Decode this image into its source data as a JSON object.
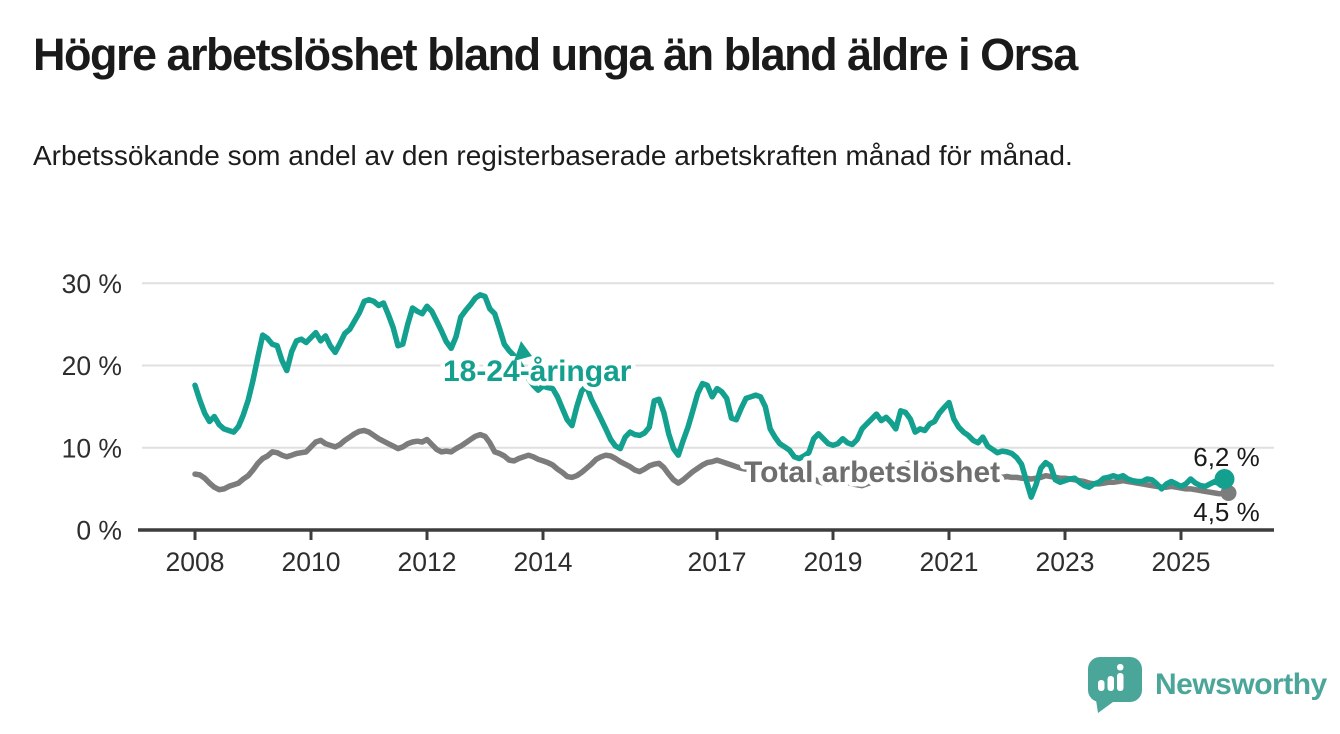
{
  "chart_data": {
    "type": "line",
    "title": "Högre arbetslöshet bland unga än bland äldre i Orsa",
    "subtitle": "Arbetssökande som andel av den registerbaserade arbetskraften månad för månad.",
    "xlabel": "",
    "ylabel": "",
    "unit": "%",
    "grid": "horizontal",
    "ylim": [
      0,
      32
    ],
    "x_domain": {
      "start": "2008-01",
      "end": "2025-10",
      "frequency": "monthly"
    },
    "y_ticks": [
      {
        "value": 0,
        "label": "0 %"
      },
      {
        "value": 10,
        "label": "10 %"
      },
      {
        "value": 20,
        "label": "20 %"
      },
      {
        "value": 30,
        "label": "30 %"
      }
    ],
    "x_ticks": [
      {
        "year": 2008,
        "label": "2008"
      },
      {
        "year": 2010,
        "label": "2010"
      },
      {
        "year": 2012,
        "label": "2012"
      },
      {
        "year": 2014,
        "label": "2014"
      },
      {
        "year": 2017,
        "label": "2017"
      },
      {
        "year": 2019,
        "label": "2019"
      },
      {
        "year": 2021,
        "label": "2021"
      },
      {
        "year": 2023,
        "label": "2023"
      },
      {
        "year": 2025,
        "label": "2025"
      }
    ],
    "series": [
      {
        "name": "18-24-åringar",
        "color": "#13A08F",
        "label_color": "#13A08F",
        "end_label": "6,2 %",
        "last_value": 6.2,
        "values": [
          17.6,
          15.8,
          14.2,
          13.2,
          13.8,
          12.8,
          12.3,
          12.1,
          11.9,
          12.6,
          14.0,
          15.8,
          18.2,
          21.0,
          23.7,
          23.3,
          22.6,
          22.4,
          20.6,
          19.4,
          21.7,
          23.0,
          23.2,
          22.8,
          23.4,
          24.0,
          23.0,
          23.6,
          22.4,
          21.6,
          22.7,
          23.9,
          24.4,
          25.4,
          26.4,
          27.8,
          28.0,
          27.8,
          27.3,
          27.6,
          26.2,
          24.6,
          22.4,
          22.6,
          25.0,
          27.0,
          26.6,
          26.3,
          27.2,
          26.6,
          25.4,
          24.2,
          22.9,
          22.1,
          23.5,
          25.9,
          26.7,
          27.4,
          28.2,
          28.6,
          28.4,
          26.9,
          26.3,
          24.5,
          22.6,
          21.8,
          21.2,
          20.4,
          19.4,
          18.4,
          17.6,
          17.0,
          17.5,
          17.3,
          17.2,
          16.2,
          14.8,
          13.4,
          12.7,
          15.0,
          16.9,
          17.5,
          15.9,
          14.7,
          13.5,
          12.3,
          11.0,
          10.2,
          9.9,
          11.3,
          11.9,
          11.6,
          11.5,
          11.8,
          12.5,
          15.7,
          15.9,
          14.3,
          11.7,
          9.9,
          9.1,
          10.9,
          12.5,
          14.5,
          16.6,
          17.8,
          17.6,
          16.2,
          17.2,
          16.8,
          16.0,
          13.6,
          13.4,
          14.8,
          16.0,
          16.2,
          16.4,
          16.2,
          15.0,
          12.3,
          11.3,
          10.5,
          10.1,
          9.7,
          8.9,
          8.7,
          9.0,
          9.4,
          11.1,
          11.7,
          11.1,
          10.5,
          10.3,
          10.5,
          11.1,
          10.6,
          10.4,
          11.0,
          12.3,
          12.9,
          13.5,
          14.1,
          13.3,
          13.7,
          13.1,
          12.3,
          14.5,
          14.3,
          13.5,
          11.9,
          12.3,
          12.1,
          12.9,
          13.2,
          14.2,
          14.9,
          15.5,
          13.5,
          12.5,
          11.9,
          11.5,
          10.9,
          10.6,
          11.3,
          10.2,
          9.8,
          9.4,
          9.6,
          9.5,
          9.3,
          8.8,
          8.0,
          6.0,
          4.0,
          5.5,
          7.5,
          8.2,
          7.8,
          6.1,
          5.8,
          6.0,
          6.2,
          6.3,
          5.8,
          5.4,
          5.2,
          5.6,
          5.8,
          6.3,
          6.4,
          6.6,
          6.4,
          6.6,
          6.2,
          6.0,
          5.9,
          5.9,
          6.2,
          6.1,
          5.6,
          5.0,
          5.6,
          5.9,
          5.6,
          5.3,
          5.6,
          6.2,
          5.7,
          5.4,
          5.3,
          5.6,
          5.9,
          5.6,
          6.2
        ]
      },
      {
        "name": "Total arbetslöshet",
        "color": "#7C7C7C",
        "label_color": "#6E6E6E",
        "end_label": "4,5 %",
        "last_value": 4.5,
        "values": [
          6.8,
          6.7,
          6.3,
          5.7,
          5.2,
          4.9,
          5.0,
          5.3,
          5.5,
          5.7,
          6.2,
          6.6,
          7.3,
          8.1,
          8.7,
          9.0,
          9.5,
          9.4,
          9.1,
          8.9,
          9.1,
          9.3,
          9.4,
          9.5,
          10.1,
          10.7,
          10.9,
          10.5,
          10.3,
          10.1,
          10.4,
          10.9,
          11.3,
          11.7,
          12.0,
          12.1,
          11.9,
          11.5,
          11.1,
          10.8,
          10.5,
          10.2,
          9.9,
          10.1,
          10.5,
          10.7,
          10.8,
          10.7,
          11.0,
          10.4,
          9.8,
          9.5,
          9.6,
          9.5,
          9.9,
          10.2,
          10.6,
          11.0,
          11.4,
          11.6,
          11.4,
          10.6,
          9.5,
          9.3,
          9.0,
          8.5,
          8.4,
          8.7,
          8.9,
          9.1,
          8.9,
          8.6,
          8.4,
          8.2,
          7.9,
          7.4,
          7.0,
          6.5,
          6.4,
          6.6,
          7.0,
          7.5,
          8.0,
          8.6,
          8.9,
          9.1,
          9.0,
          8.7,
          8.3,
          8.0,
          7.7,
          7.3,
          7.1,
          7.4,
          7.8,
          8.0,
          8.1,
          7.6,
          6.8,
          6.1,
          5.7,
          6.1,
          6.6,
          7.1,
          7.5,
          7.9,
          8.2,
          8.3,
          8.5,
          8.3,
          8.1,
          7.9,
          7.7,
          7.5,
          7.4,
          7.6,
          7.8,
          7.9,
          7.7,
          7.4,
          7.2,
          7.0,
          6.8,
          6.6,
          6.4,
          6.2,
          6.3,
          6.5,
          6.2,
          5.9,
          5.7,
          5.6,
          5.8,
          5.9,
          6.0,
          5.8,
          5.6,
          5.5,
          5.4,
          5.6,
          5.8,
          6.0,
          6.1,
          6.2,
          6.4,
          6.6,
          7.4,
          8.0,
          8.2,
          8.0,
          7.8,
          7.7,
          7.6,
          7.5,
          7.6,
          7.7,
          7.8,
          7.6,
          7.4,
          7.2,
          7.0,
          6.8,
          6.6,
          6.7,
          6.6,
          6.5,
          6.4,
          6.4,
          6.5,
          6.4,
          6.4,
          6.3,
          6.3,
          6.2,
          6.3,
          6.4,
          6.6,
          6.5,
          6.4,
          6.3,
          6.3,
          6.2,
          6.1,
          6.0,
          5.9,
          5.7,
          5.6,
          5.6,
          5.7,
          5.8,
          5.8,
          5.9,
          6.0,
          5.9,
          5.8,
          5.7,
          5.6,
          5.5,
          5.4,
          5.3,
          5.2,
          5.2,
          5.3,
          5.2,
          5.1,
          5.0,
          5.0,
          4.9,
          4.8,
          4.7,
          4.6,
          4.5,
          4.4,
          4.5
        ]
      }
    ]
  },
  "footer": {
    "brand": "Newsworthy",
    "logo_color": "#4BA69A"
  }
}
